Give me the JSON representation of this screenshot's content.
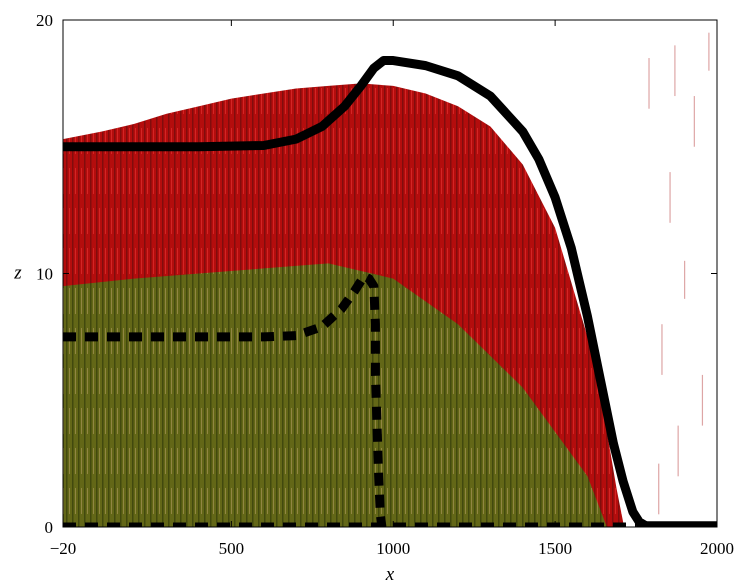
{
  "chart_data": {
    "type": "line",
    "title": "",
    "xlabel": "x",
    "ylabel": "z",
    "xlim": [
      -20,
      2000
    ],
    "ylim": [
      0,
      20
    ],
    "x_ticks": [
      -20,
      500,
      1000,
      1500,
      2000
    ],
    "x_tick_labels": [
      "−20",
      "500",
      "1000",
      "1500",
      "2000"
    ],
    "y_ticks": [
      0,
      10,
      20
    ],
    "y_tick_labels": [
      "0",
      "10",
      "20"
    ],
    "grid": false,
    "legend": "none",
    "background_field": {
      "description_colors": [
        "#b30000",
        "#1fb31f"
      ],
      "top_profile": [
        {
          "x": -20,
          "z": 15.3
        },
        {
          "x": 100,
          "z": 15.6
        },
        {
          "x": 200,
          "z": 15.9
        },
        {
          "x": 300,
          "z": 16.3
        },
        {
          "x": 400,
          "z": 16.6
        },
        {
          "x": 500,
          "z": 16.9
        },
        {
          "x": 600,
          "z": 17.1
        },
        {
          "x": 700,
          "z": 17.3
        },
        {
          "x": 800,
          "z": 17.4
        },
        {
          "x": 900,
          "z": 17.5
        },
        {
          "x": 1000,
          "z": 17.4
        },
        {
          "x": 1100,
          "z": 17.1
        },
        {
          "x": 1200,
          "z": 16.6
        },
        {
          "x": 1300,
          "z": 15.8
        },
        {
          "x": 1400,
          "z": 14.3
        },
        {
          "x": 1500,
          "z": 11.8
        },
        {
          "x": 1600,
          "z": 7.5
        },
        {
          "x": 1650,
          "z": 4.5
        },
        {
          "x": 1690,
          "z": 1.5
        },
        {
          "x": 1710,
          "z": 0.2
        }
      ],
      "green_profile": [
        {
          "x": -20,
          "z": 9.5
        },
        {
          "x": 200,
          "z": 9.8
        },
        {
          "x": 400,
          "z": 10.0
        },
        {
          "x": 600,
          "z": 10.2
        },
        {
          "x": 800,
          "z": 10.4
        },
        {
          "x": 1000,
          "z": 9.8
        },
        {
          "x": 1200,
          "z": 8.0
        },
        {
          "x": 1400,
          "z": 5.5
        },
        {
          "x": 1600,
          "z": 2.0
        },
        {
          "x": 1660,
          "z": 0.0
        }
      ]
    },
    "series": [
      {
        "style": "solid",
        "color": "#000000",
        "x": [
          -20,
          200,
          400,
          600,
          700,
          780,
          850,
          900,
          940,
          970,
          1000,
          1100,
          1200,
          1300,
          1400,
          1450,
          1500,
          1550,
          1600,
          1640,
          1680,
          1710,
          1740,
          1760,
          1780,
          1800
        ],
        "y": [
          15.0,
          15.0,
          15.0,
          15.05,
          15.3,
          15.8,
          16.6,
          17.4,
          18.1,
          18.4,
          18.4,
          18.2,
          17.8,
          17.0,
          15.6,
          14.5,
          13.0,
          11.0,
          8.3,
          5.8,
          3.3,
          1.8,
          0.6,
          0.2,
          0.05,
          0.0
        ]
      },
      {
        "style": "dashed",
        "color": "#000000",
        "x": [
          -20,
          200,
          400,
          600,
          700,
          780,
          840,
          880,
          910,
          925,
          940,
          945,
          945,
          950,
          955,
          960,
          965
        ],
        "y": [
          7.5,
          7.5,
          7.5,
          7.5,
          7.55,
          7.9,
          8.6,
          9.3,
          9.9,
          9.8,
          9.5,
          8.0,
          6.0,
          4.0,
          2.0,
          0.5,
          0.0
        ]
      },
      {
        "style": "dashed",
        "color": "#000000",
        "x": [
          -20,
          1750
        ],
        "y": [
          0.0,
          0.0
        ]
      },
      {
        "style": "solid",
        "color": "#000000",
        "x": [
          1750,
          2000
        ],
        "y": [
          0.05,
          0.05
        ]
      }
    ]
  }
}
